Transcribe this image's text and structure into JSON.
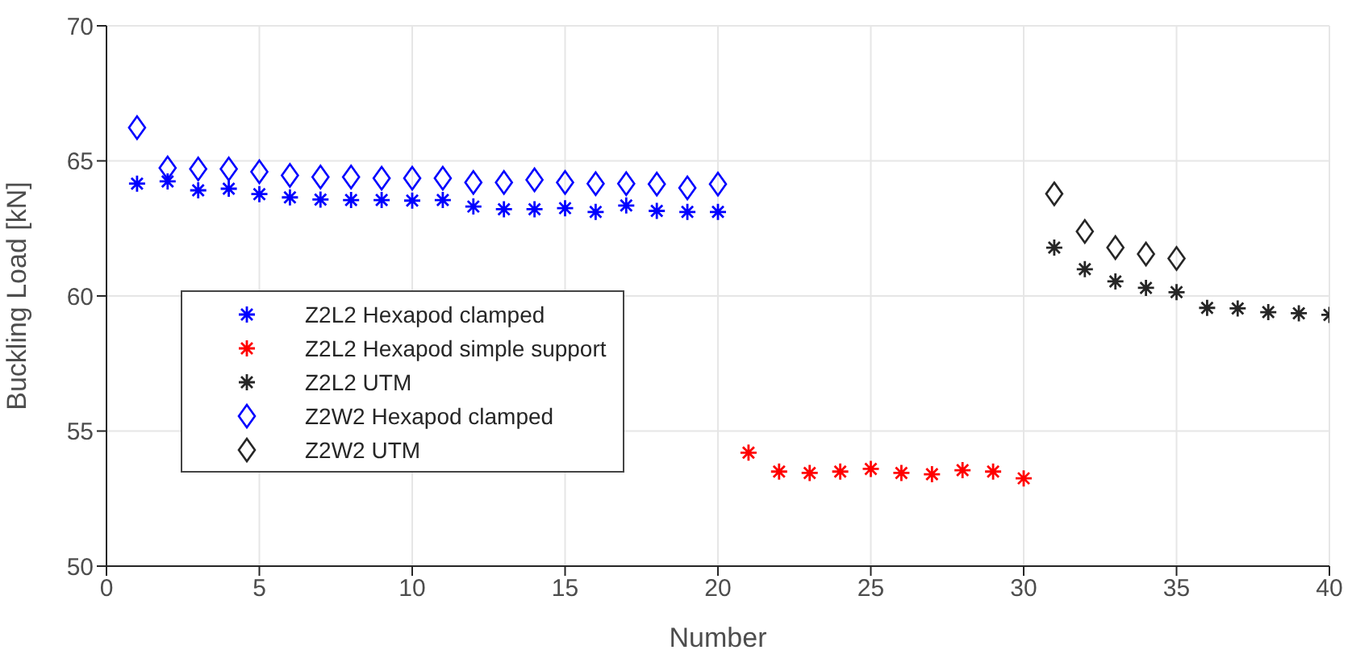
{
  "chart_data": {
    "type": "scatter",
    "xlabel": "Number",
    "ylabel": "Buckling Load [kN]",
    "xlim": [
      0,
      40
    ],
    "xticks": [
      0,
      5,
      10,
      15,
      20,
      25,
      30,
      35,
      40
    ],
    "ylim": [
      50,
      70
    ],
    "yticks": [
      50,
      55,
      60,
      65,
      70
    ],
    "grid": true,
    "legend": "left",
    "series": [
      {
        "name": "Z2L2 Hexapod clamped",
        "color": "#0000ff",
        "marker": "cross",
        "x": [
          1,
          2,
          3,
          4,
          5,
          6,
          7,
          8,
          9,
          10,
          11,
          12,
          13,
          14,
          15,
          16,
          17,
          18,
          19,
          20
        ],
        "values": [
          64.16,
          64.24,
          63.91,
          63.97,
          63.77,
          63.65,
          63.57,
          63.55,
          63.55,
          63.53,
          63.55,
          63.31,
          63.21,
          63.21,
          63.25,
          63.11,
          63.35,
          63.15,
          63.11,
          63.11
        ]
      },
      {
        "name": "Z2L2 Hexapod simple support",
        "color": "#ff0000",
        "marker": "cross",
        "x": [
          21,
          22,
          23,
          24,
          25,
          26,
          27,
          28,
          29,
          30
        ],
        "values": [
          54.2,
          53.5,
          53.45,
          53.5,
          53.6,
          53.45,
          53.4,
          53.55,
          53.5,
          53.25
        ]
      },
      {
        "name": "Z2L2 UTM",
        "color": "#262626",
        "marker": "cross",
        "x": [
          31,
          32,
          33,
          34,
          35,
          36,
          37,
          38,
          39,
          40
        ],
        "values": [
          61.79,
          60.99,
          60.54,
          60.3,
          60.14,
          59.56,
          59.54,
          59.4,
          59.36,
          59.3
        ]
      },
      {
        "name": "Z2W2 Hexapod clamped",
        "color": "#0000ff",
        "marker": "diamond",
        "x": [
          1,
          2,
          3,
          4,
          5,
          6,
          7,
          8,
          9,
          10,
          11,
          12,
          13,
          14,
          15,
          16,
          17,
          18,
          19,
          20
        ],
        "values": [
          66.23,
          64.74,
          64.7,
          64.7,
          64.6,
          64.46,
          64.4,
          64.4,
          64.36,
          64.36,
          64.36,
          64.2,
          64.2,
          64.3,
          64.2,
          64.16,
          64.16,
          64.14,
          64.0,
          64.14
        ]
      },
      {
        "name": "Z2W2 UTM",
        "color": "#262626",
        "marker": "diamond",
        "x": [
          31,
          32,
          33,
          34,
          35
        ],
        "values": [
          63.78,
          62.39,
          61.79,
          61.55,
          61.39
        ]
      }
    ]
  }
}
